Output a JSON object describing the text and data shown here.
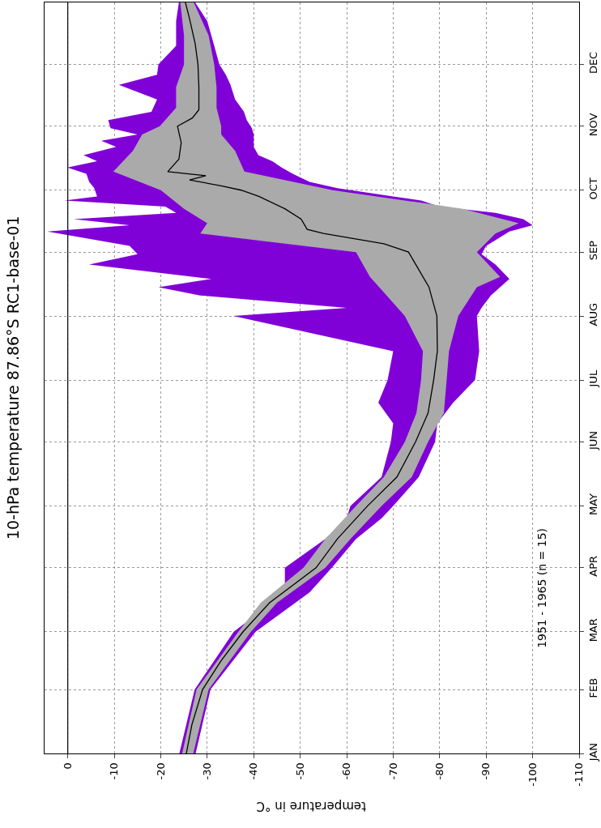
{
  "chart_data": {
    "type": "line",
    "orientation": "horizontal",
    "title": "10-hPa temperature 87.86°S RC1-base-01",
    "xlabel": "temperature in °C",
    "annotations": [
      "1951 - 1965 (n = 15)"
    ],
    "series": [
      {
        "type": "area",
        "color": "#8000d8",
        "x": [
          "--01-01",
          "--02-01",
          "--03-01",
          "--03-20",
          "--04-01",
          "--04-15",
          "--04-25",
          "--05-01",
          "--05-15",
          "--06-01",
          "--06-10",
          "--06-20",
          "--07-01",
          "--07-15",
          "--08-01",
          "--08-05",
          "--08-11",
          "--08-15",
          "--08-19",
          "--08-26",
          "--08-31",
          "--09-04",
          "--09-11",
          "--09-14",
          "--09-17",
          "--09-20",
          "--09-23",
          "--09-26",
          "--09-28",
          "--10-02",
          "--10-05",
          "--10-09",
          "--10-12",
          "--10-15",
          "--10-18",
          "--10-22",
          "--10-25",
          "--10-28",
          "--10-31",
          "--11-04",
          "--11-08",
          "--11-14",
          "--11-21",
          "--11-26",
          "--12-01",
          "--12-10",
          "--12-22",
          "--12-31"
        ],
        "upper": [
          -24,
          -27.3,
          -35.7,
          -46.7,
          -46.7,
          -55.4,
          -60,
          -60.8,
          -67.5,
          -69.5,
          -70,
          -66.8,
          -68.8,
          -70,
          -35.6,
          -60,
          -28.5,
          -19.5,
          -30.9,
          -4.6,
          -15,
          -13.3,
          4.4,
          -13.3,
          -1.3,
          -23.3,
          -21,
          0.7,
          -6.3,
          -5.7,
          -4.6,
          -4,
          0.1,
          -6.3,
          -3.4,
          -10.4,
          -7.2,
          -15,
          -9.2,
          -8.7,
          -18,
          -19.2,
          -11,
          -19.2,
          -19.5,
          -23.3,
          -23.3,
          -23.9
        ],
        "values": [
          null,
          null,
          null,
          null,
          null,
          null,
          null,
          null,
          null,
          null,
          null,
          null,
          null,
          null,
          null,
          null,
          null,
          null,
          null,
          null,
          null,
          null,
          null,
          null,
          null,
          null,
          null,
          null,
          null,
          null,
          null,
          null,
          null,
          null,
          null,
          null,
          null,
          null,
          null,
          null,
          null,
          null,
          null,
          null,
          null,
          null,
          null,
          null
        ],
        "lower": [
          -27.5,
          -30.7,
          -40.4,
          -52,
          -56.8,
          -62,
          -67.5,
          -70,
          -75.5,
          -79,
          -79.5,
          -82.9,
          -87.6,
          -88.5,
          -88,
          -89,
          -91,
          -93,
          -95,
          -92,
          -89,
          -90,
          -95,
          -100,
          -98,
          -92,
          -80,
          -76,
          -70,
          -58,
          -52,
          -48.4,
          -46,
          -44,
          -41,
          -40,
          -40,
          -40,
          -39.6,
          -38.5,
          -37.9,
          -36,
          -35,
          -34,
          -32.6,
          -31.5,
          -30,
          -27.4
        ]
      },
      {
        "type": "area",
        "color": "#aaaaaa",
        "x": [
          "--01-01",
          "--02-01",
          "--03-01",
          "--03-15",
          "--04-01",
          "--04-15",
          "--05-01",
          "--05-15",
          "--06-01",
          "--06-15",
          "--07-01",
          "--07-15",
          "--08-01",
          "--08-15",
          "--08-20",
          "--09-01",
          "--09-10",
          "--09-15",
          "--09-22",
          "--10-01",
          "--10-10",
          "--10-20",
          "--10-28",
          "--11-01",
          "--11-10",
          "--11-20",
          "--12-01",
          "--12-15",
          "--12-31"
        ],
        "upper": [
          -24.6,
          -27.7,
          -36.7,
          -41.5,
          -50.7,
          -55.4,
          -62,
          -68,
          -72.5,
          -75,
          -76,
          -76.4,
          -72.5,
          -67,
          -65,
          -62,
          -28.5,
          -30,
          -25,
          -20,
          -9.8,
          -14,
          -16,
          -19.8,
          -23.3,
          -23.3,
          -25,
          -25,
          -24.2
        ],
        "values": [
          null,
          null,
          null,
          null,
          null,
          null,
          null,
          null,
          null,
          null,
          null,
          null,
          null,
          null,
          null,
          null,
          null,
          null,
          null,
          null,
          null,
          null,
          null,
          null,
          null,
          null,
          null,
          null,
          null
        ],
        "lower": [
          -27,
          -30.3,
          -39.4,
          -45,
          -55.4,
          -60.8,
          -67.5,
          -74,
          -77.5,
          -80.9,
          -81.5,
          -82,
          -84,
          -88,
          -93,
          -88,
          -92,
          -97,
          -85,
          -57,
          -38,
          -36,
          -33,
          -33,
          -32,
          -32,
          -31.5,
          -30.3,
          -27.1
        ]
      },
      {
        "type": "line",
        "color": "#000000",
        "x": [
          "--01-01",
          "--01-15",
          "--02-01",
          "--02-15",
          "--03-01",
          "--03-15",
          "--04-01",
          "--04-15",
          "--05-01",
          "--05-15",
          "--06-01",
          "--06-15",
          "--07-01",
          "--07-15",
          "--08-01",
          "--08-15",
          "--09-01",
          "--09-05",
          "--09-10",
          "--09-12",
          "--09-17",
          "--09-22",
          "--09-28",
          "--10-01",
          "--10-03",
          "--10-06",
          "--10-08",
          "--10-10",
          "--10-16",
          "--10-24",
          "--11-01",
          "--11-05",
          "--11-09",
          "--11-20",
          "--12-01",
          "--12-11",
          "--12-23",
          "--12-31"
        ],
        "values": [
          -25.5,
          -26.7,
          -29,
          -33,
          -37.7,
          -43.4,
          -53.4,
          -58,
          -64.5,
          -70.8,
          -74.8,
          -77.5,
          -78.7,
          -79.5,
          -79.4,
          -77.7,
          -73.3,
          -68,
          -55,
          -51.5,
          -50.2,
          -46.7,
          -41.1,
          -37.3,
          -33.2,
          -26.2,
          -29.7,
          -21.5,
          -23.9,
          -24.4,
          -23.6,
          -26.8,
          -28.2,
          -28.2,
          -28,
          -27.4,
          -26.2,
          -25.3
        ]
      }
    ],
    "xlim": [
      5,
      -110
    ],
    "xticks": [
      0,
      -10,
      -20,
      -30,
      -40,
      -50,
      -60,
      -70,
      -80,
      -90,
      -100,
      -110
    ],
    "ylim": [
      "--01-01",
      "--12-31"
    ],
    "yticks": [
      {
        "value": "--01-01",
        "label": "JAN"
      },
      {
        "value": "--02-01",
        "label": "FEB"
      },
      {
        "value": "--03-01",
        "label": "MAR"
      },
      {
        "value": "--04-01",
        "label": "APR"
      },
      {
        "value": "--05-01",
        "label": "MAY"
      },
      {
        "value": "--06-01",
        "label": "JUN"
      },
      {
        "value": "--07-01",
        "label": "JUL"
      },
      {
        "value": "--08-01",
        "label": "AUG"
      },
      {
        "value": "--09-01",
        "label": "SEP"
      },
      {
        "value": "--10-01",
        "label": "OCT"
      },
      {
        "value": "--11-01",
        "label": "NOV"
      },
      {
        "value": "--12-01",
        "label": "DEC"
      }
    ],
    "grid": true,
    "ref_lines": [
      {
        "axis": "x",
        "value": 0,
        "color": "#000000"
      }
    ]
  }
}
